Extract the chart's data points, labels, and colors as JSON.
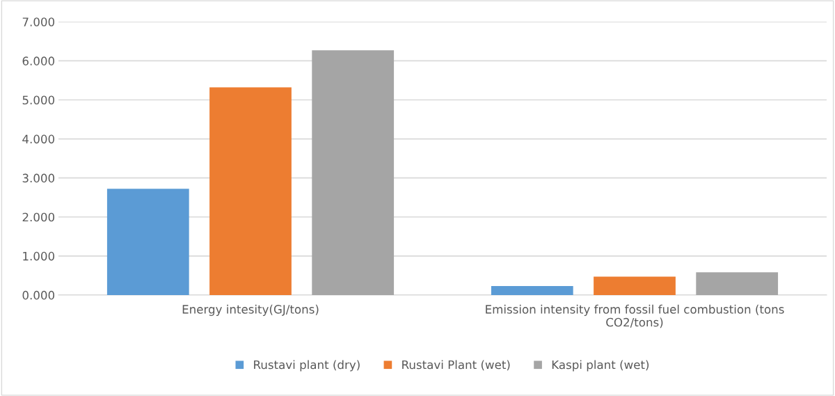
{
  "chart_data": {
    "type": "bar",
    "categories": [
      "Energy intesity(GJ/tons)",
      "Emission intensity from fossil fuel combustion (tons\nCO2/tons)"
    ],
    "series": [
      {
        "name": "Rustavi plant (dry)",
        "color": "#5b9bd5",
        "values": [
          2.72,
          0.23
        ]
      },
      {
        "name": "Rustavi Plant (wet)",
        "color": "#ed7d31",
        "values": [
          5.32,
          0.47
        ]
      },
      {
        "name": "Kaspi plant (wet)",
        "color": "#a5a5a5",
        "values": [
          6.27,
          0.58
        ]
      }
    ],
    "ylim": [
      0,
      7
    ],
    "yticks": [
      {
        "value": 0,
        "label": "0.000"
      },
      {
        "value": 1,
        "label": "1.000"
      },
      {
        "value": 2,
        "label": "2.000"
      },
      {
        "value": 3,
        "label": "3.000"
      },
      {
        "value": 4,
        "label": "4.000"
      },
      {
        "value": 5,
        "label": "5.000"
      },
      {
        "value": 6,
        "label": "6.000"
      },
      {
        "value": 7,
        "label": "7.000"
      }
    ],
    "grid": "y",
    "legend": "bottom"
  }
}
